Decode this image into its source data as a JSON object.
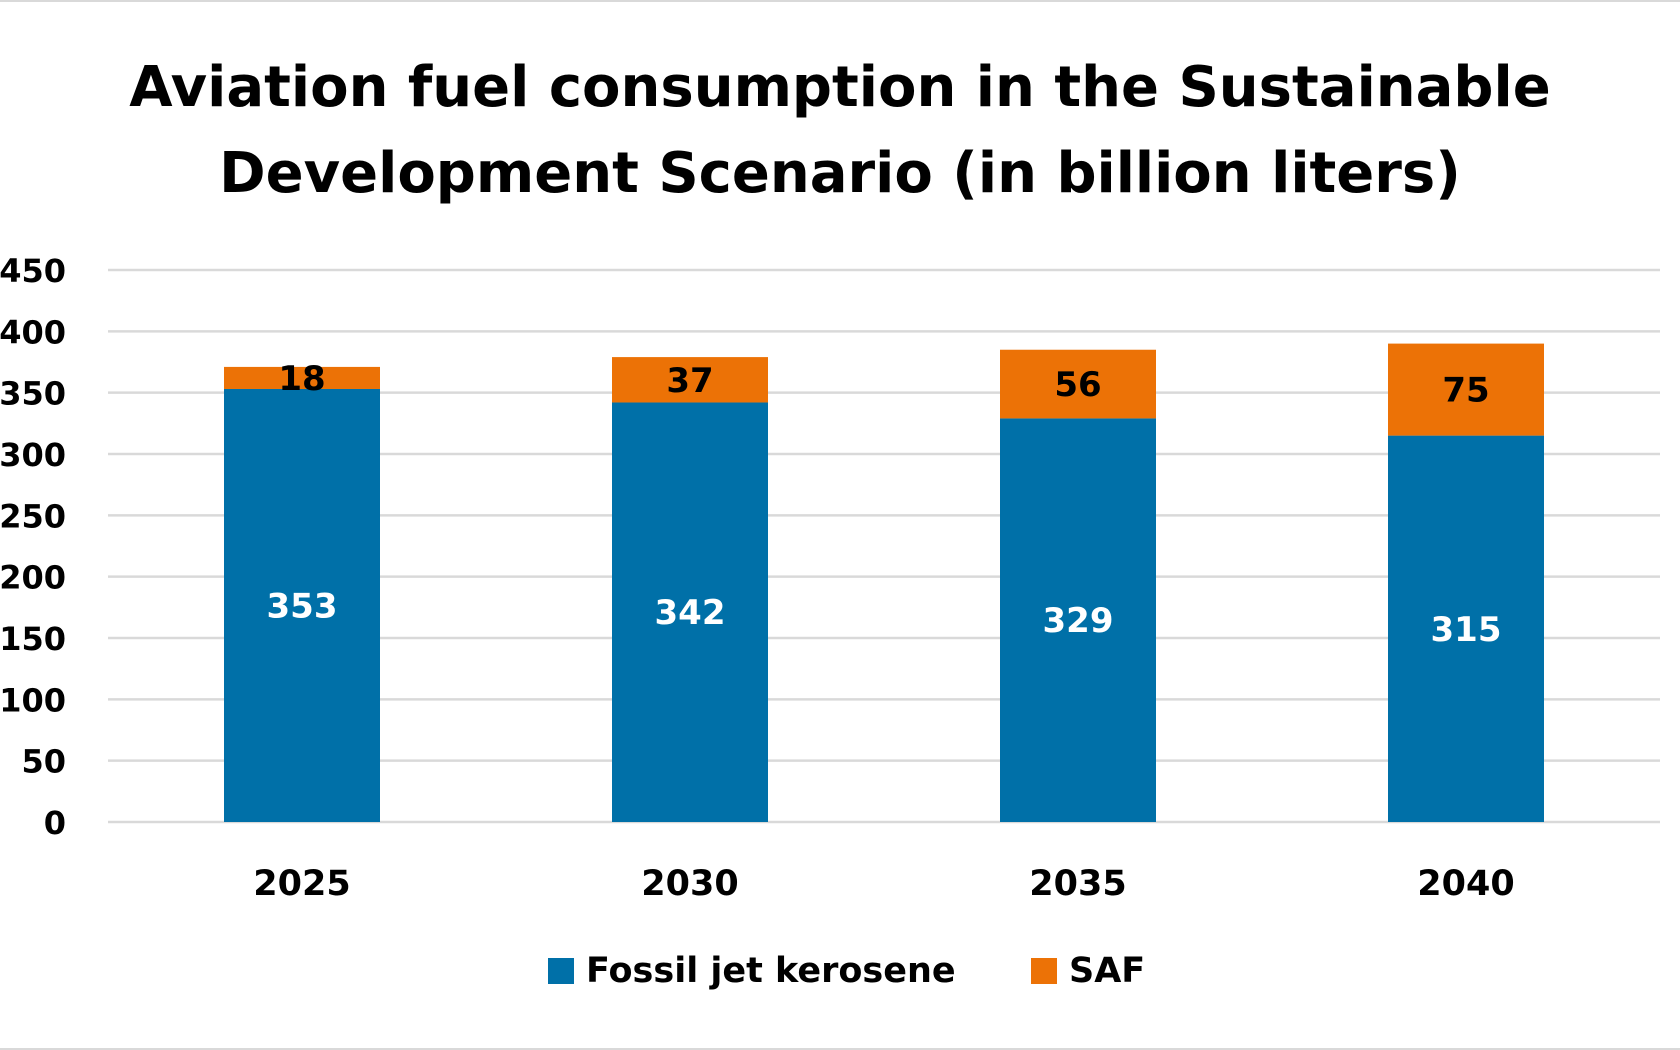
{
  "chart_data": {
    "type": "bar",
    "stacked": true,
    "title": "Aviation fuel consumption in the Sustainable Development Scenario (in billion liters)",
    "title_lines": [
      "Aviation fuel consumption in the Sustainable",
      "Development Scenario (in billion liters)"
    ],
    "xlabel": "",
    "ylabel": "",
    "categories": [
      "2025",
      "2030",
      "2035",
      "2040"
    ],
    "series": [
      {
        "name": "Fossil jet kerosene",
        "values": [
          353,
          342,
          329,
          315
        ],
        "color": "#0070a8",
        "label_color": "#ffffff"
      },
      {
        "name": "SAF",
        "values": [
          18,
          37,
          56,
          75
        ],
        "color": "#ec7206",
        "label_color": "#000000"
      }
    ],
    "ylim": [
      0,
      450
    ],
    "yticks": [
      0,
      50,
      100,
      150,
      200,
      250,
      300,
      350,
      400,
      450
    ],
    "grid": true,
    "legend_position": "bottom",
    "gridline_color": "#d9d9d9"
  }
}
